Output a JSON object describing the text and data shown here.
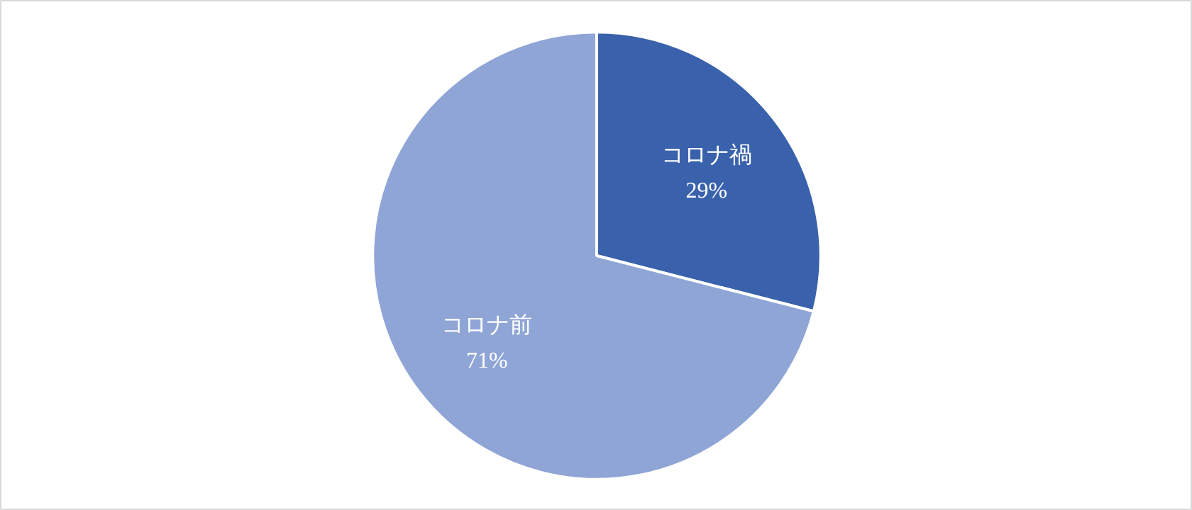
{
  "chart_data": {
    "type": "pie",
    "categories": [
      "コロナ禍",
      "コロナ前"
    ],
    "values": [
      29,
      71
    ],
    "colors": [
      "#3a62ac",
      "#8fa5d6"
    ],
    "value_labels": [
      "29%",
      "71%"
    ]
  }
}
